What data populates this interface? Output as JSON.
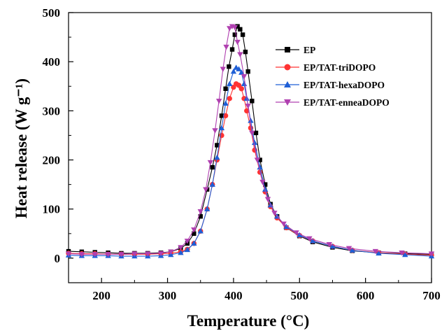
{
  "chart_data": {
    "type": "line",
    "title": "",
    "xlabel": "Temperature (°C)",
    "ylabel": "Heat release (W g⁻¹)",
    "xlim": [
      150,
      700
    ],
    "ylim": [
      -50,
      500
    ],
    "xticks": [
      200,
      300,
      400,
      500,
      600,
      700
    ],
    "yticks": [
      0,
      100,
      200,
      300,
      400,
      500
    ],
    "grid": false,
    "legend_position": "top-right",
    "series": [
      {
        "name": "EP",
        "color": "#000000",
        "marker": "square",
        "points": [
          [
            150,
            14
          ],
          [
            170,
            13
          ],
          [
            190,
            12
          ],
          [
            210,
            11
          ],
          [
            230,
            10
          ],
          [
            250,
            10
          ],
          [
            270,
            10
          ],
          [
            290,
            11
          ],
          [
            305,
            13
          ],
          [
            320,
            20
          ],
          [
            330,
            30
          ],
          [
            340,
            50
          ],
          [
            350,
            85
          ],
          [
            360,
            140
          ],
          [
            368,
            185
          ],
          [
            375,
            230
          ],
          [
            382,
            290
          ],
          [
            388,
            345
          ],
          [
            393,
            390
          ],
          [
            398,
            425
          ],
          [
            402,
            455
          ],
          [
            406,
            472
          ],
          [
            410,
            466
          ],
          [
            414,
            455
          ],
          [
            418,
            420
          ],
          [
            422,
            380
          ],
          [
            428,
            320
          ],
          [
            434,
            255
          ],
          [
            440,
            200
          ],
          [
            448,
            150
          ],
          [
            456,
            110
          ],
          [
            466,
            85
          ],
          [
            480,
            62
          ],
          [
            500,
            45
          ],
          [
            520,
            33
          ],
          [
            550,
            22
          ],
          [
            580,
            15
          ],
          [
            620,
            11
          ],
          [
            660,
            9
          ],
          [
            700,
            8
          ]
        ]
      },
      {
        "name": "EP/TAT-triDOPO",
        "color": "#ff3333",
        "marker": "circle",
        "points": [
          [
            150,
            10
          ],
          [
            170,
            9
          ],
          [
            190,
            9
          ],
          [
            210,
            8
          ],
          [
            230,
            8
          ],
          [
            250,
            8
          ],
          [
            270,
            8
          ],
          [
            290,
            9
          ],
          [
            305,
            10
          ],
          [
            320,
            13
          ],
          [
            330,
            18
          ],
          [
            340,
            30
          ],
          [
            350,
            55
          ],
          [
            360,
            100
          ],
          [
            368,
            150
          ],
          [
            375,
            200
          ],
          [
            382,
            250
          ],
          [
            388,
            290
          ],
          [
            394,
            325
          ],
          [
            400,
            348
          ],
          [
            404,
            355
          ],
          [
            408,
            352
          ],
          [
            412,
            345
          ],
          [
            416,
            325
          ],
          [
            420,
            300
          ],
          [
            426,
            265
          ],
          [
            432,
            220
          ],
          [
            440,
            175
          ],
          [
            448,
            135
          ],
          [
            456,
            105
          ],
          [
            466,
            82
          ],
          [
            480,
            62
          ],
          [
            500,
            46
          ],
          [
            520,
            35
          ],
          [
            550,
            24
          ],
          [
            580,
            16
          ],
          [
            620,
            11
          ],
          [
            660,
            8
          ],
          [
            700,
            6
          ]
        ]
      },
      {
        "name": "EP/TAT-hexaDOPO",
        "color": "#1f5fd6",
        "marker": "triangle-up",
        "points": [
          [
            150,
            6
          ],
          [
            170,
            5
          ],
          [
            190,
            5
          ],
          [
            210,
            5
          ],
          [
            230,
            4
          ],
          [
            250,
            4
          ],
          [
            270,
            4
          ],
          [
            290,
            5
          ],
          [
            305,
            7
          ],
          [
            320,
            11
          ],
          [
            330,
            17
          ],
          [
            340,
            30
          ],
          [
            350,
            55
          ],
          [
            360,
            100
          ],
          [
            368,
            150
          ],
          [
            375,
            205
          ],
          [
            382,
            265
          ],
          [
            388,
            315
          ],
          [
            394,
            355
          ],
          [
            400,
            380
          ],
          [
            404,
            388
          ],
          [
            408,
            385
          ],
          [
            412,
            378
          ],
          [
            416,
            355
          ],
          [
            420,
            325
          ],
          [
            426,
            280
          ],
          [
            432,
            235
          ],
          [
            440,
            185
          ],
          [
            448,
            140
          ],
          [
            456,
            108
          ],
          [
            466,
            85
          ],
          [
            480,
            64
          ],
          [
            500,
            47
          ],
          [
            520,
            35
          ],
          [
            550,
            24
          ],
          [
            580,
            16
          ],
          [
            620,
            10
          ],
          [
            660,
            7
          ],
          [
            700,
            4
          ]
        ]
      },
      {
        "name": "EP/TAT-enneaDOPO",
        "color": "#b040b0",
        "marker": "triangle-down",
        "points": [
          [
            150,
            9
          ],
          [
            170,
            8
          ],
          [
            190,
            8
          ],
          [
            210,
            8
          ],
          [
            230,
            8
          ],
          [
            250,
            9
          ],
          [
            270,
            9
          ],
          [
            290,
            10
          ],
          [
            305,
            13
          ],
          [
            320,
            22
          ],
          [
            330,
            35
          ],
          [
            340,
            58
          ],
          [
            350,
            95
          ],
          [
            358,
            140
          ],
          [
            365,
            195
          ],
          [
            372,
            260
          ],
          [
            378,
            320
          ],
          [
            384,
            385
          ],
          [
            389,
            430
          ],
          [
            394,
            468
          ],
          [
            398,
            472
          ],
          [
            402,
            470
          ],
          [
            406,
            440
          ],
          [
            410,
            415
          ],
          [
            416,
            370
          ],
          [
            422,
            310
          ],
          [
            428,
            255
          ],
          [
            436,
            200
          ],
          [
            444,
            155
          ],
          [
            452,
            120
          ],
          [
            462,
            92
          ],
          [
            476,
            70
          ],
          [
            495,
            52
          ],
          [
            515,
            40
          ],
          [
            545,
            28
          ],
          [
            575,
            20
          ],
          [
            615,
            14
          ],
          [
            655,
            11
          ],
          [
            700,
            9
          ]
        ]
      }
    ]
  }
}
